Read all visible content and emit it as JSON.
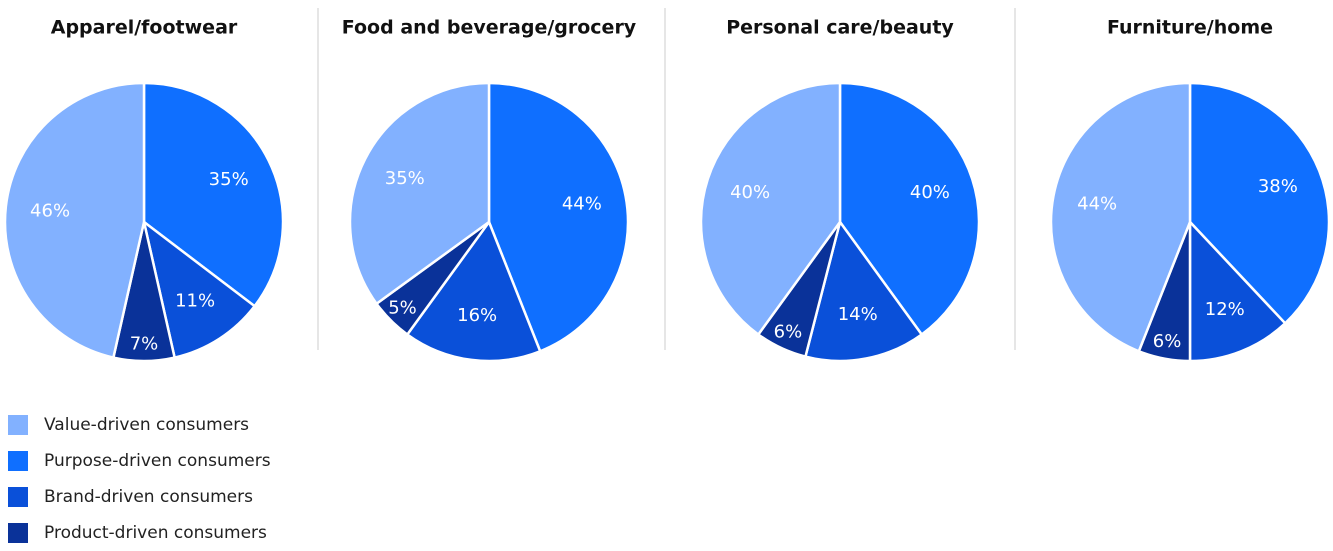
{
  "legend": {
    "categories": [
      "Value-driven consumers",
      "Purpose-driven consumers",
      "Brand-driven consumers",
      "Product-driven consumers"
    ],
    "colors": [
      "#82b1ff",
      "#0f6fff",
      "#0a50d9",
      "#0a3299"
    ]
  },
  "chart_data": [
    {
      "type": "pie",
      "title": "Apparel/footwear",
      "values": [
        46,
        35,
        11,
        7
      ],
      "value_labels": [
        "46%",
        "35%",
        "11%",
        "7%"
      ]
    },
    {
      "type": "pie",
      "title": "Food and beverage/grocery",
      "values": [
        35,
        44,
        16,
        5
      ],
      "value_labels": [
        "35%",
        "44%",
        "16%",
        "5%"
      ]
    },
    {
      "type": "pie",
      "title": "Personal care/beauty",
      "values": [
        40,
        40,
        14,
        6
      ],
      "value_labels": [
        "40%",
        "40%",
        "14%",
        "6%"
      ]
    },
    {
      "type": "pie",
      "title": "Furniture/home",
      "values": [
        44,
        38,
        12,
        6
      ],
      "value_labels": [
        "44%",
        "38%",
        "12%",
        "6%"
      ]
    }
  ]
}
